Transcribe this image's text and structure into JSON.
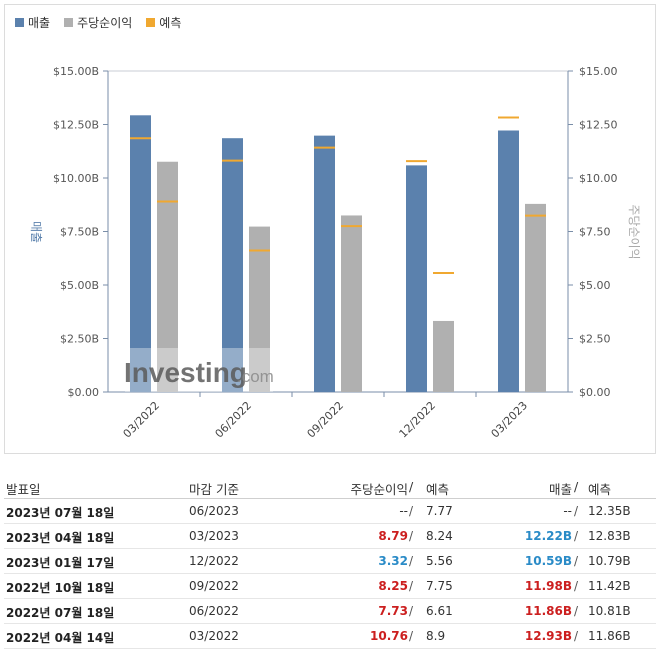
{
  "legend": {
    "revenue": "매출",
    "eps": "주당순이익",
    "forecast": "예측"
  },
  "colors": {
    "revenue": "#5b81ad",
    "eps": "#b0b0b0",
    "forecast": "#f0a830",
    "axis": "#7a8ea8",
    "better": "#cc1f1f",
    "worse": "#2a8bc7"
  },
  "chart_data": {
    "type": "bar",
    "categories": [
      "03/2022",
      "06/2022",
      "09/2022",
      "12/2022",
      "03/2023"
    ],
    "series": [
      {
        "name": "매출",
        "values": [
          12.93,
          11.86,
          11.98,
          10.59,
          12.22
        ],
        "forecast": [
          11.86,
          10.81,
          11.42,
          10.79,
          12.83
        ]
      },
      {
        "name": "주당순이익",
        "values": [
          10.76,
          7.73,
          8.25,
          3.32,
          8.79
        ],
        "forecast": [
          8.9,
          6.61,
          7.75,
          5.56,
          8.24
        ]
      }
    ],
    "y_left": {
      "label": "매출",
      "ticks": [
        "$0.00",
        "$2.50B",
        "$5.00B",
        "$7.50B",
        "$10.00B",
        "$12.50B",
        "$15.00B"
      ],
      "range": [
        0,
        15
      ]
    },
    "y_right": {
      "label": "주당순이익",
      "ticks": [
        "$0.00",
        "$2.50",
        "$5.00",
        "$7.50",
        "$10.00",
        "$12.50",
        "$15.00"
      ],
      "range": [
        0,
        15
      ]
    },
    "watermark": "Investing.com"
  },
  "table": {
    "headers": {
      "date": "발표일",
      "period": "마감 기준",
      "eps": "주당순이익",
      "eps_sep": "/",
      "eps_fc": "예측",
      "rev": "매출",
      "rev_sep": "/",
      "rev_fc": "예측"
    },
    "rows": [
      {
        "date": "2023년 07월 18일",
        "period": "06/2023",
        "eps": "--",
        "eps_sep": "/",
        "eps_fc": "7.77",
        "rev": "--",
        "rev_sep": "/",
        "rev_fc": "12.35B"
      },
      {
        "date": "2023년 04월 18일",
        "period": "03/2023",
        "eps": "8.79",
        "eps_sep": "/",
        "eps_fc": "8.24",
        "rev": "12.22B",
        "rev_sep": "/",
        "rev_fc": "12.83B"
      },
      {
        "date": "2023년 01월 17일",
        "period": "12/2022",
        "eps": "3.32",
        "eps_sep": "/",
        "eps_fc": "5.56",
        "rev": "10.59B",
        "rev_sep": "/",
        "rev_fc": "10.79B"
      },
      {
        "date": "2022년 10월 18일",
        "period": "09/2022",
        "eps": "8.25",
        "eps_sep": "/",
        "eps_fc": "7.75",
        "rev": "11.98B",
        "rev_sep": "/",
        "rev_fc": "11.42B"
      },
      {
        "date": "2022년 07월 18일",
        "period": "06/2022",
        "eps": "7.73",
        "eps_sep": "/",
        "eps_fc": "6.61",
        "rev": "11.86B",
        "rev_sep": "/",
        "rev_fc": "10.81B"
      },
      {
        "date": "2022년 04월 14일",
        "period": "03/2022",
        "eps": "10.76",
        "eps_sep": "/",
        "eps_fc": "8.9",
        "rev": "12.93B",
        "rev_sep": "/",
        "rev_fc": "11.86B"
      }
    ]
  }
}
